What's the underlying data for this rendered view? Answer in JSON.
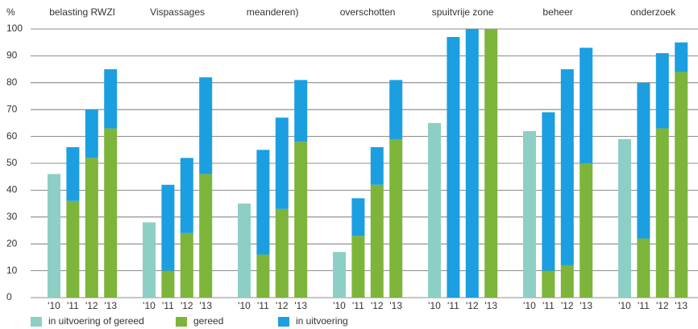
{
  "chart_data": {
    "type": "grouped_stacked_bar",
    "ylabel": "%",
    "categories": [
      "belasting RWZI",
      "Vispassages",
      "meanderen)",
      "overschotten",
      "spuitvrije zone",
      "beheer",
      "onderzoek"
    ],
    "years": [
      "'10",
      "'11",
      "'12",
      "'13"
    ],
    "series": [
      {
        "name": "in uitvoering of gereed",
        "color": "#8dcfc4",
        "stack": false,
        "values": [
          [
            46,
            null,
            null,
            null
          ],
          [
            28,
            null,
            null,
            null
          ],
          [
            35,
            null,
            null,
            null
          ],
          [
            17,
            null,
            null,
            null
          ],
          [
            65,
            null,
            null,
            null
          ],
          [
            62,
            null,
            null,
            null
          ],
          [
            59,
            null,
            null,
            null
          ]
        ]
      },
      {
        "name": "gereed",
        "color": "#7cb53a",
        "stack": true,
        "values": [
          [
            null,
            36,
            52,
            63
          ],
          [
            null,
            10,
            24,
            46
          ],
          [
            null,
            16,
            33,
            58
          ],
          [
            null,
            23,
            42,
            59
          ],
          [
            null,
            0,
            0,
            100
          ],
          [
            null,
            10,
            12,
            50
          ],
          [
            null,
            22,
            63,
            84
          ]
        ]
      },
      {
        "name": "in uitvoering",
        "color": "#1b9fe0",
        "stack": true,
        "values": [
          [
            null,
            20,
            18,
            22
          ],
          [
            null,
            32,
            28,
            36
          ],
          [
            null,
            39,
            34,
            23
          ],
          [
            null,
            14,
            14,
            22
          ],
          [
            null,
            97,
            100,
            0
          ],
          [
            null,
            59,
            73,
            43
          ],
          [
            null,
            58,
            28,
            11
          ]
        ]
      }
    ],
    "ylim": [
      0,
      100
    ],
    "yticks": [
      0,
      10,
      20,
      30,
      40,
      50,
      60,
      70,
      80,
      90,
      100
    ],
    "grid": true
  }
}
